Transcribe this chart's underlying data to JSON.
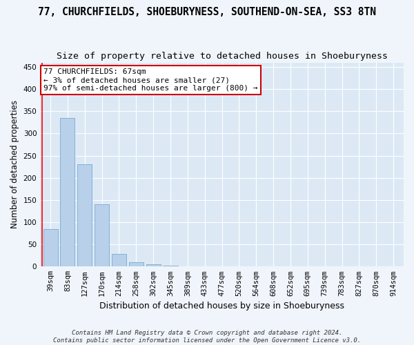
{
  "title": "77, CHURCHFIELDS, SHOEBURYNESS, SOUTHEND-ON-SEA, SS3 8TN",
  "subtitle": "Size of property relative to detached houses in Shoeburyness",
  "xlabel": "Distribution of detached houses by size in Shoeburyness",
  "ylabel": "Number of detached properties",
  "categories": [
    "39sqm",
    "83sqm",
    "127sqm",
    "170sqm",
    "214sqm",
    "258sqm",
    "302sqm",
    "345sqm",
    "389sqm",
    "433sqm",
    "477sqm",
    "520sqm",
    "564sqm",
    "608sqm",
    "652sqm",
    "695sqm",
    "739sqm",
    "783sqm",
    "827sqm",
    "870sqm",
    "914sqm"
  ],
  "values": [
    85,
    335,
    230,
    140,
    28,
    10,
    5,
    2,
    1,
    0,
    0,
    1,
    0,
    0,
    0,
    1,
    0,
    1,
    0,
    0,
    1
  ],
  "bar_color": "#b8d0ea",
  "bar_edge_color": "#7aaacf",
  "annotation_box_text": "77 CHURCHFIELDS: 67sqm\n← 3% of detached houses are smaller (27)\n97% of semi-detached houses are larger (800) →",
  "annotation_box_color": "#ffffff",
  "annotation_box_edge_color": "#cc0000",
  "ylim": [
    0,
    460
  ],
  "yticks": [
    0,
    50,
    100,
    150,
    200,
    250,
    300,
    350,
    400,
    450
  ],
  "plot_bg_color": "#dce9f5",
  "fig_bg_color": "#f0f5fb",
  "grid_color": "#ffffff",
  "footer": "Contains HM Land Registry data © Crown copyright and database right 2024.\nContains public sector information licensed under the Open Government Licence v3.0.",
  "title_fontsize": 10.5,
  "subtitle_fontsize": 9.5,
  "xlabel_fontsize": 9,
  "ylabel_fontsize": 8.5,
  "tick_fontsize": 7.5,
  "ann_fontsize": 8,
  "footer_fontsize": 6.5
}
